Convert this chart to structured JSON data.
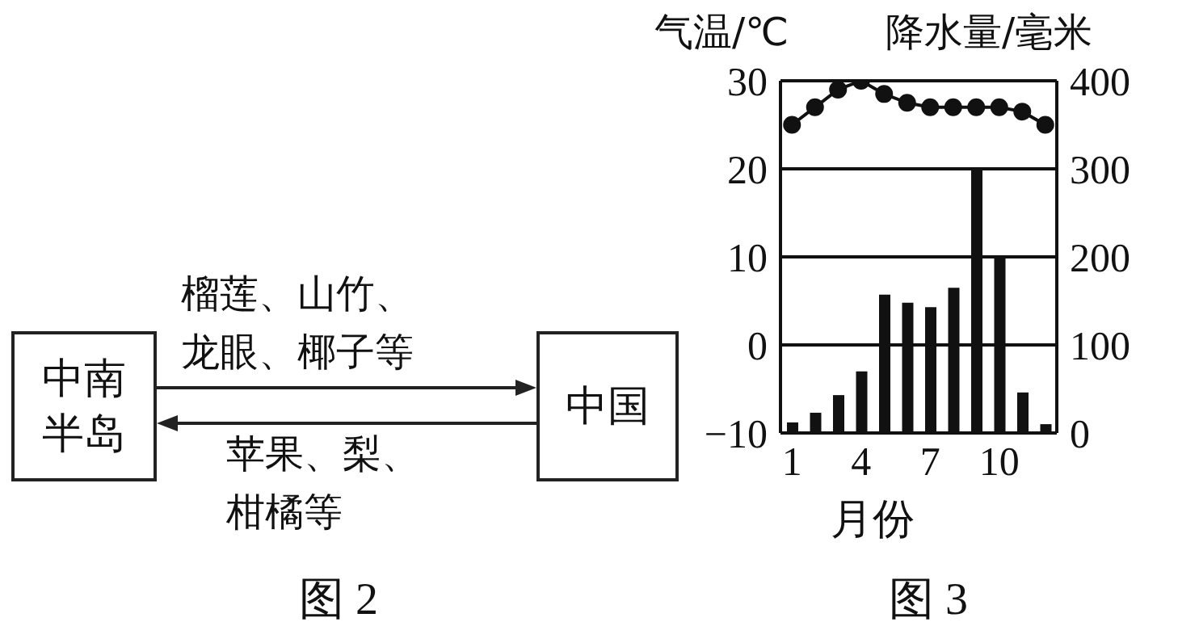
{
  "chart_data": [
    {
      "type": "other",
      "annotations": [
        "中南半岛",
        "中国",
        "榴莲、山竹、龙眼、椰子等",
        "苹果、梨、柑橘等",
        "图 2"
      ]
    },
    {
      "type": "bar",
      "xlabel": "月份",
      "ylabel": "气温/℃",
      "y2label": "降水量/毫米",
      "annotations": [
        "图 3"
      ],
      "categories": [
        "1",
        null,
        null,
        "4",
        null,
        null,
        "7",
        null,
        null,
        "10",
        null,
        null
      ],
      "series": [
        {
          "type": "bar",
          "axis": "y2",
          "color": "#111111",
          "values": [
            12,
            23,
            43,
            70,
            157,
            148,
            143,
            165,
            300,
            200,
            46,
            10
          ]
        },
        {
          "type": "line",
          "axis": "y",
          "color": "#111111",
          "marker": "circle",
          "values": [
            25,
            27,
            29,
            30,
            28.5,
            27.5,
            27,
            27,
            27,
            27,
            26.5,
            25
          ]
        }
      ],
      "ylim": [
        -10,
        30
      ],
      "yticks": [
        -10,
        0,
        10,
        20,
        30
      ],
      "y2lim": [
        0,
        400
      ],
      "y2ticks": [
        0,
        100,
        200,
        300,
        400
      ],
      "grid": "y",
      "legend": false
    }
  ]
}
